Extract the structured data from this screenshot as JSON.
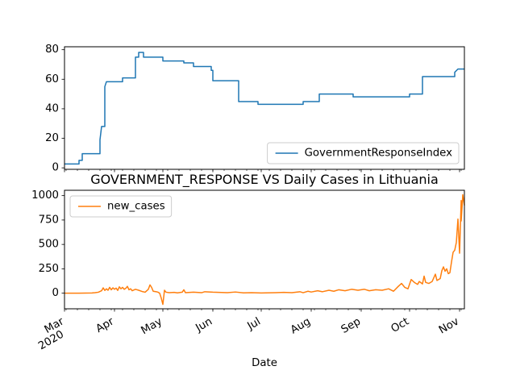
{
  "colors": {
    "series1": "#1f77b4",
    "series2": "#ff7f0e",
    "axis": "#000000",
    "legend_border": "#cccccc"
  },
  "chart_data": [
    {
      "type": "line",
      "title": "",
      "xlabel": "",
      "ylabel": "",
      "xlim": [
        "2020-03-01",
        "2020-11-04"
      ],
      "ylim": [
        -1,
        82
      ],
      "yticks": [
        0,
        20,
        40,
        60,
        80
      ],
      "grid": false,
      "legend_position": "lower-right",
      "series": [
        {
          "name": "GovernmentResponseIndex",
          "color": "#1f77b4",
          "points": [
            [
              "2020-03-01",
              2.6
            ],
            [
              "2020-03-10",
              2.6
            ],
            [
              "2020-03-10",
              5.1
            ],
            [
              "2020-03-12",
              5.1
            ],
            [
              "2020-03-12",
              9.6
            ],
            [
              "2020-03-16",
              9.6
            ],
            [
              "2020-03-23",
              9.6
            ],
            [
              "2020-03-23",
              19
            ],
            [
              "2020-03-24",
              28
            ],
            [
              "2020-03-26",
              28
            ],
            [
              "2020-03-26",
              55
            ],
            [
              "2020-03-27",
              58.3
            ],
            [
              "2020-04-06",
              58.3
            ],
            [
              "2020-04-06",
              60.9
            ],
            [
              "2020-04-14",
              60.9
            ],
            [
              "2020-04-14",
              75
            ],
            [
              "2020-04-16",
              75
            ],
            [
              "2020-04-16",
              78.2
            ],
            [
              "2020-04-19",
              78.2
            ],
            [
              "2020-04-19",
              75
            ],
            [
              "2020-05-01",
              75
            ],
            [
              "2020-05-01",
              72.4
            ],
            [
              "2020-05-14",
              72.4
            ],
            [
              "2020-05-14",
              71.1
            ],
            [
              "2020-05-20",
              71.1
            ],
            [
              "2020-05-20",
              68.6
            ],
            [
              "2020-05-31",
              68.6
            ],
            [
              "2020-05-31",
              66
            ],
            [
              "2020-06-01",
              66
            ],
            [
              "2020-06-01",
              59
            ],
            [
              "2020-06-17",
              59
            ],
            [
              "2020-06-17",
              44.9
            ],
            [
              "2020-06-29",
              44.9
            ],
            [
              "2020-06-29",
              43
            ],
            [
              "2020-07-27",
              43
            ],
            [
              "2020-07-27",
              44.9
            ],
            [
              "2020-08-06",
              44.9
            ],
            [
              "2020-08-06",
              50
            ],
            [
              "2020-08-27",
              50
            ],
            [
              "2020-08-27",
              48.1
            ],
            [
              "2020-10-01",
              48.1
            ],
            [
              "2020-10-01",
              50
            ],
            [
              "2020-10-09",
              50
            ],
            [
              "2020-10-09",
              61.8
            ],
            [
              "2020-10-29",
              61.8
            ],
            [
              "2020-10-29",
              64.7
            ],
            [
              "2020-10-31",
              66.9
            ],
            [
              "2020-11-04",
              66.9
            ]
          ]
        }
      ]
    },
    {
      "type": "line",
      "title": "GOVERNMENT_RESPONSE VS Daily Cases in Lithuania",
      "xlabel": "Date",
      "ylabel": "",
      "xlim": [
        "2020-03-01",
        "2020-11-04"
      ],
      "ylim": [
        -160,
        1055
      ],
      "yticks": [
        0,
        250,
        500,
        750,
        1000
      ],
      "xticks": [
        {
          "date": "2020-03-01",
          "label": "Mar",
          "sublabel": "2020"
        },
        {
          "date": "2020-04-01",
          "label": "Apr"
        },
        {
          "date": "2020-05-01",
          "label": "May"
        },
        {
          "date": "2020-06-01",
          "label": "Jun"
        },
        {
          "date": "2020-07-01",
          "label": "Jul"
        },
        {
          "date": "2020-08-01",
          "label": "Aug"
        },
        {
          "date": "2020-09-01",
          "label": "Sep"
        },
        {
          "date": "2020-10-01",
          "label": "Oct"
        },
        {
          "date": "2020-11-01",
          "label": "Nov"
        }
      ],
      "grid": false,
      "legend_position": "upper-left",
      "series": [
        {
          "name": "new_cases",
          "color": "#ff7f0e",
          "points": [
            [
              "2020-03-01",
              0
            ],
            [
              "2020-03-10",
              0
            ],
            [
              "2020-03-18",
              2
            ],
            [
              "2020-03-20",
              5
            ],
            [
              "2020-03-22",
              10
            ],
            [
              "2020-03-24",
              25
            ],
            [
              "2020-03-25",
              55
            ],
            [
              "2020-03-26",
              28
            ],
            [
              "2020-03-27",
              45
            ],
            [
              "2020-03-28",
              30
            ],
            [
              "2020-03-29",
              60
            ],
            [
              "2020-03-30",
              35
            ],
            [
              "2020-03-31",
              55
            ],
            [
              "2020-04-01",
              40
            ],
            [
              "2020-04-02",
              52
            ],
            [
              "2020-04-03",
              28
            ],
            [
              "2020-04-04",
              65
            ],
            [
              "2020-04-05",
              45
            ],
            [
              "2020-04-06",
              60
            ],
            [
              "2020-04-07",
              40
            ],
            [
              "2020-04-08",
              50
            ],
            [
              "2020-04-09",
              70
            ],
            [
              "2020-04-10",
              35
            ],
            [
              "2020-04-11",
              45
            ],
            [
              "2020-04-12",
              25
            ],
            [
              "2020-04-14",
              40
            ],
            [
              "2020-04-16",
              30
            ],
            [
              "2020-04-18",
              18
            ],
            [
              "2020-04-20",
              10
            ],
            [
              "2020-04-22",
              40
            ],
            [
              "2020-04-23",
              85
            ],
            [
              "2020-04-24",
              60
            ],
            [
              "2020-04-25",
              20
            ],
            [
              "2020-04-27",
              15
            ],
            [
              "2020-04-28",
              10
            ],
            [
              "2020-04-29",
              0
            ],
            [
              "2020-04-30",
              -50
            ],
            [
              "2020-05-01",
              -115
            ],
            [
              "2020-05-02",
              30
            ],
            [
              "2020-05-03",
              10
            ],
            [
              "2020-05-05",
              5
            ],
            [
              "2020-05-08",
              8
            ],
            [
              "2020-05-10",
              3
            ],
            [
              "2020-05-13",
              10
            ],
            [
              "2020-05-14",
              35
            ],
            [
              "2020-05-15",
              5
            ],
            [
              "2020-05-20",
              10
            ],
            [
              "2020-05-25",
              5
            ],
            [
              "2020-05-27",
              15
            ],
            [
              "2020-06-01",
              10
            ],
            [
              "2020-06-10",
              5
            ],
            [
              "2020-06-15",
              12
            ],
            [
              "2020-06-20",
              3
            ],
            [
              "2020-06-25",
              5
            ],
            [
              "2020-07-01",
              2
            ],
            [
              "2020-07-10",
              5
            ],
            [
              "2020-07-15",
              8
            ],
            [
              "2020-07-20",
              5
            ],
            [
              "2020-07-25",
              15
            ],
            [
              "2020-07-27",
              5
            ],
            [
              "2020-07-30",
              20
            ],
            [
              "2020-08-01",
              12
            ],
            [
              "2020-08-05",
              25
            ],
            [
              "2020-08-08",
              15
            ],
            [
              "2020-08-12",
              30
            ],
            [
              "2020-08-15",
              20
            ],
            [
              "2020-08-18",
              35
            ],
            [
              "2020-08-22",
              25
            ],
            [
              "2020-08-26",
              40
            ],
            [
              "2020-08-30",
              30
            ],
            [
              "2020-09-03",
              40
            ],
            [
              "2020-09-06",
              25
            ],
            [
              "2020-09-10",
              35
            ],
            [
              "2020-09-14",
              30
            ],
            [
              "2020-09-18",
              45
            ],
            [
              "2020-09-21",
              20
            ],
            [
              "2020-09-24",
              70
            ],
            [
              "2020-09-26",
              100
            ],
            [
              "2020-09-28",
              60
            ],
            [
              "2020-09-30",
              45
            ],
            [
              "2020-10-02",
              140
            ],
            [
              "2020-10-04",
              110
            ],
            [
              "2020-10-06",
              90
            ],
            [
              "2020-10-07",
              120
            ],
            [
              "2020-10-09",
              95
            ],
            [
              "2020-10-10",
              175
            ],
            [
              "2020-10-11",
              110
            ],
            [
              "2020-10-13",
              100
            ],
            [
              "2020-10-15",
              120
            ],
            [
              "2020-10-17",
              195
            ],
            [
              "2020-10-18",
              130
            ],
            [
              "2020-10-20",
              150
            ],
            [
              "2020-10-21",
              230
            ],
            [
              "2020-10-22",
              270
            ],
            [
              "2020-10-23",
              225
            ],
            [
              "2020-10-24",
              250
            ],
            [
              "2020-10-25",
              200
            ],
            [
              "2020-10-26",
              210
            ],
            [
              "2020-10-27",
              320
            ],
            [
              "2020-10-28",
              420
            ],
            [
              "2020-10-29",
              440
            ],
            [
              "2020-10-30",
              520
            ],
            [
              "2020-10-31",
              760
            ],
            [
              "2020-11-01",
              410
            ],
            [
              "2020-11-02",
              950
            ],
            [
              "2020-11-02",
              740
            ],
            [
              "2020-11-03",
              1010
            ],
            [
              "2020-11-04",
              900
            ]
          ]
        }
      ]
    }
  ]
}
